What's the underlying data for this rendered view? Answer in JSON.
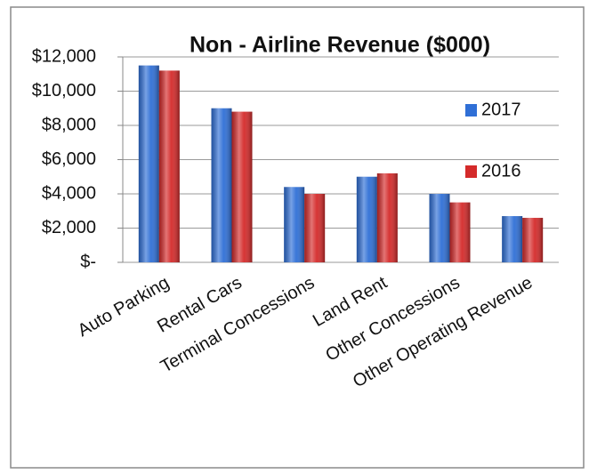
{
  "chart_data": {
    "type": "bar",
    "title": "Non - Airline Revenue ($000)",
    "categories": [
      "Auto Parking",
      "Rental Cars",
      "Terminal Concessions",
      "Land Rent",
      "Other Concessions",
      "Other Operating Revenue"
    ],
    "series": [
      {
        "name": "2017",
        "color": "#2f6fd6",
        "values": [
          11500,
          9000,
          4400,
          5000,
          4000,
          2700
        ]
      },
      {
        "name": "2016",
        "color": "#d42a2a",
        "values": [
          11200,
          8800,
          4000,
          5200,
          3500,
          2600
        ]
      }
    ],
    "ylim": [
      0,
      12000
    ],
    "yticks": [
      {
        "value": 0,
        "label": "$-"
      },
      {
        "value": 2000,
        "label": "$2,000"
      },
      {
        "value": 4000,
        "label": "$4,000"
      },
      {
        "value": 6000,
        "label": "$6,000"
      },
      {
        "value": 8000,
        "label": "$8,000"
      },
      {
        "value": 10000,
        "label": "$10,000"
      },
      {
        "value": 12000,
        "label": "$12,000"
      }
    ],
    "grid": true,
    "legend": "right"
  }
}
